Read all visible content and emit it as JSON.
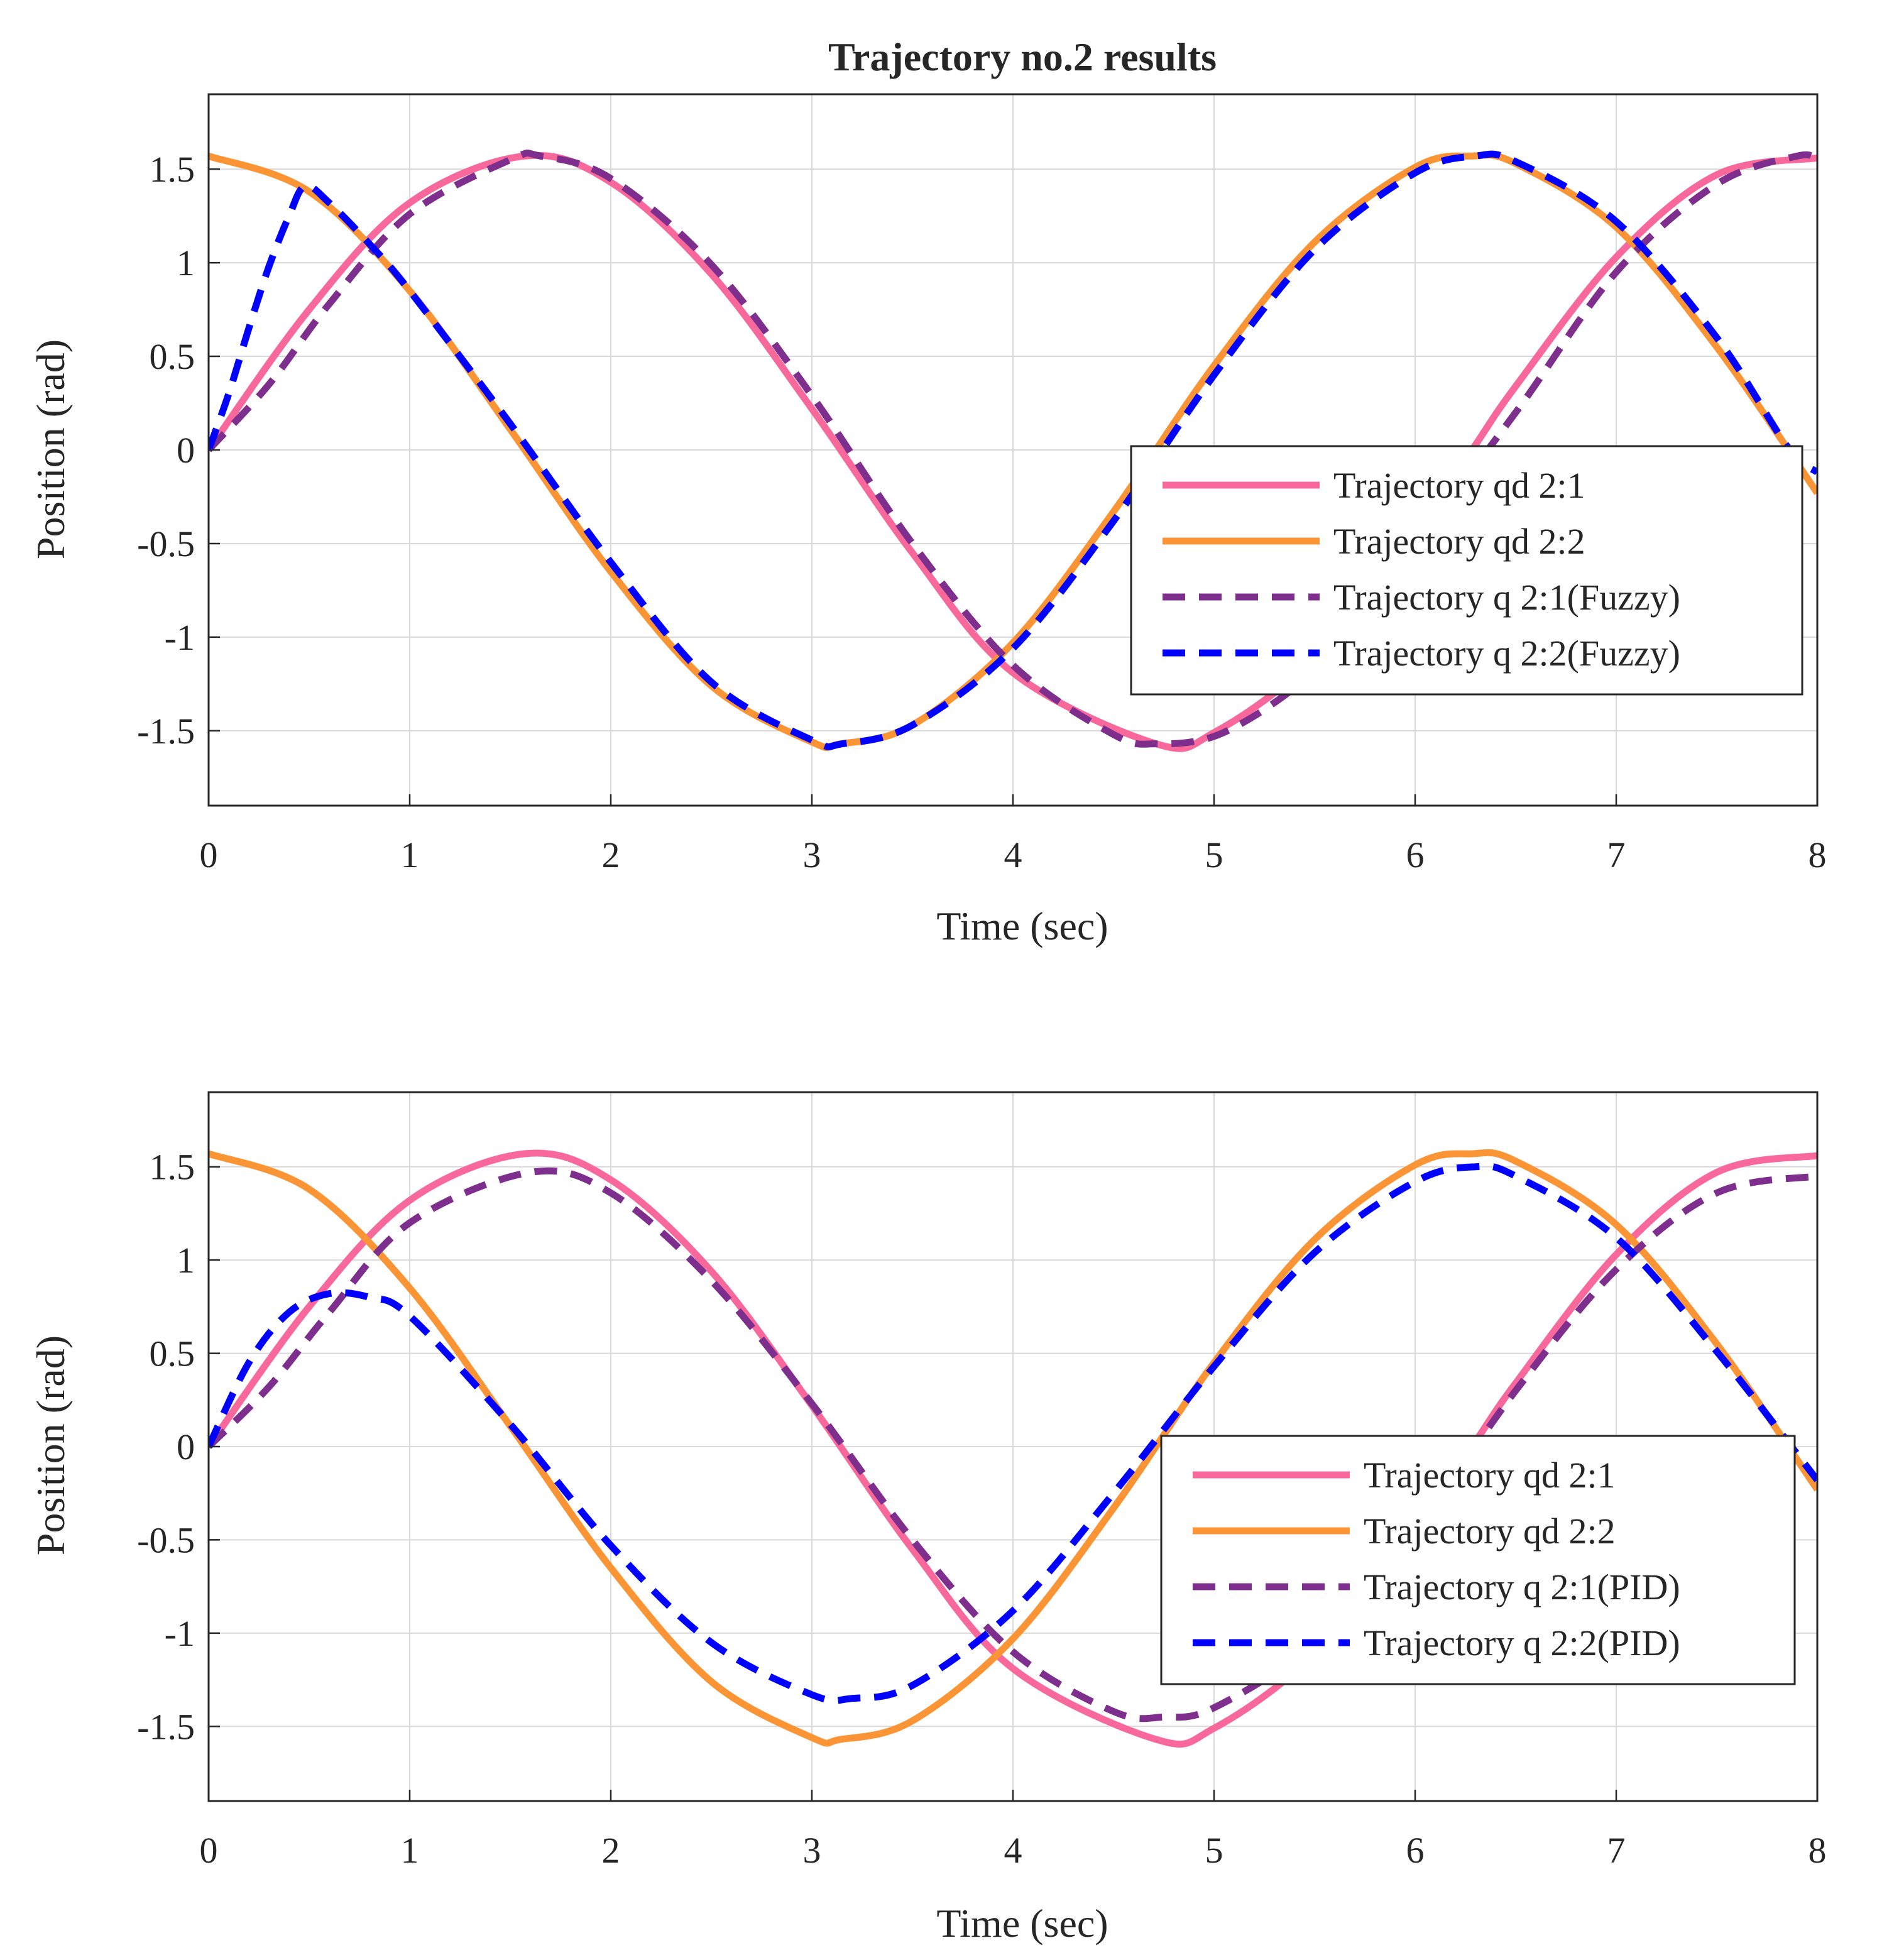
{
  "colors": {
    "qd1": "#f8689a",
    "qd2": "#fb9435",
    "q1": "#7e2f8e",
    "q2": "#0000ff",
    "grid": "#d9d9d9",
    "axis": "#262626"
  },
  "chart_data": [
    {
      "type": "line",
      "title": "Trajectory no.2 results",
      "xlabel": "Time (sec)",
      "ylabel": "Position (rad)",
      "xlim": [
        0,
        8
      ],
      "ylim": [
        -1.9,
        1.9
      ],
      "xticks": [
        "0",
        "1",
        "2",
        "3",
        "4",
        "5",
        "6",
        "7",
        "8"
      ],
      "yticks": [
        "1.5",
        "1",
        "0.5",
        "0",
        "-0.5",
        "-1",
        "-1.5"
      ],
      "grid": true,
      "legend_position": "right",
      "series": [
        {
          "name": "Trajectory qd 2:1",
          "style": "solid",
          "color_key": "qd1",
          "x": [
            0,
            0.5,
            1,
            1.5708,
            2,
            2.5,
            3,
            3.5,
            4,
            4.7124,
            5,
            5.5,
            6,
            6.2832,
            6.5,
            7,
            7.5,
            8
          ],
          "y": [
            0,
            0.75,
            1.32,
            1.57,
            1.43,
            0.94,
            0.22,
            -0.55,
            -1.19,
            -1.57,
            -1.51,
            -1.11,
            -0.44,
            0,
            0.34,
            1.03,
            1.47,
            1.56
          ]
        },
        {
          "name": "Trajectory qd 2:2",
          "style": "solid",
          "color_key": "qd2",
          "x": [
            0,
            0.5,
            1,
            1.5,
            2,
            2.5,
            3,
            3.1416,
            3.5,
            4,
            4.5,
            5,
            5.5,
            6,
            6.2832,
            6.5,
            7,
            7.5,
            8
          ],
          "y": [
            1.57,
            1.38,
            0.85,
            0.11,
            -0.65,
            -1.26,
            -1.56,
            -1.57,
            -1.47,
            -1.03,
            -0.33,
            0.45,
            1.11,
            1.51,
            1.57,
            1.53,
            1.19,
            0.55,
            -0.23
          ]
        },
        {
          "name": "Trajectory q 2:1(Fuzzy)",
          "style": "dashed",
          "color_key": "q1",
          "x": [
            0,
            0.3,
            0.6,
            1,
            1.5,
            1.65,
            2,
            2.5,
            3,
            3.5,
            4,
            4.5,
            4.72,
            5,
            5.3,
            5.5,
            6,
            6.5,
            7,
            7.5,
            7.9,
            8
          ],
          "y": [
            0,
            0.35,
            0.78,
            1.26,
            1.55,
            1.57,
            1.45,
            0.99,
            0.29,
            -0.5,
            -1.15,
            -1.52,
            -1.57,
            -1.53,
            -1.35,
            -1.15,
            -0.5,
            0.2,
            0.95,
            1.42,
            1.57,
            1.55
          ]
        },
        {
          "name": "Trajectory q 2:2(Fuzzy)",
          "style": "dashed",
          "color_key": "q2",
          "x": [
            0,
            0.1,
            0.2,
            0.3,
            0.4,
            0.48,
            0.6,
            0.8,
            1,
            1.5,
            2,
            2.5,
            3,
            3.15,
            3.5,
            4,
            4.5,
            5,
            5.5,
            6,
            6.3,
            6.5,
            7,
            7.5,
            7.85,
            8
          ],
          "y": [
            0,
            0.3,
            0.65,
            0.98,
            1.25,
            1.41,
            1.32,
            1.1,
            0.85,
            0.14,
            -0.6,
            -1.24,
            -1.55,
            -1.57,
            -1.47,
            -1.06,
            -0.38,
            0.4,
            1.07,
            1.48,
            1.57,
            1.54,
            1.22,
            0.6,
            0.02,
            -0.12
          ]
        }
      ],
      "legend": [
        "Trajectory qd 2:1",
        "Trajectory qd 2:2",
        "Trajectory q 2:1(Fuzzy)",
        "Trajectory q 2:2(Fuzzy)"
      ]
    },
    {
      "type": "line",
      "title": "",
      "xlabel": "Time (sec)",
      "ylabel": "Position (rad)",
      "xlim": [
        0,
        8
      ],
      "ylim": [
        -1.9,
        1.9
      ],
      "xticks": [
        "0",
        "1",
        "2",
        "3",
        "4",
        "5",
        "6",
        "7",
        "8"
      ],
      "yticks": [
        "1.5",
        "1",
        "0.5",
        "0",
        "-0.5",
        "-1",
        "-1.5"
      ],
      "grid": true,
      "legend_position": "right",
      "series": [
        {
          "name": "Trajectory qd 2:1",
          "style": "solid",
          "color_key": "qd1",
          "x": [
            0,
            0.5,
            1,
            1.5708,
            2,
            2.5,
            3,
            3.5,
            4,
            4.7124,
            5,
            5.5,
            6,
            6.2832,
            6.5,
            7,
            7.5,
            8
          ],
          "y": [
            0,
            0.75,
            1.32,
            1.57,
            1.43,
            0.94,
            0.22,
            -0.55,
            -1.19,
            -1.57,
            -1.51,
            -1.11,
            -0.44,
            0,
            0.34,
            1.03,
            1.47,
            1.56
          ]
        },
        {
          "name": "Trajectory qd 2:2",
          "style": "solid",
          "color_key": "qd2",
          "x": [
            0,
            0.5,
            1,
            1.5,
            2,
            2.5,
            3,
            3.1416,
            3.5,
            4,
            4.5,
            5,
            5.5,
            6,
            6.2832,
            6.5,
            7,
            7.5,
            8
          ],
          "y": [
            1.57,
            1.38,
            0.85,
            0.11,
            -0.65,
            -1.26,
            -1.56,
            -1.57,
            -1.47,
            -1.03,
            -0.33,
            0.45,
            1.11,
            1.51,
            1.57,
            1.53,
            1.19,
            0.55,
            -0.23
          ]
        },
        {
          "name": "Trajectory q 2:1(PID)",
          "style": "dashed",
          "color_key": "q1",
          "x": [
            0,
            0.3,
            0.6,
            1,
            1.6,
            2,
            2.5,
            3,
            3.5,
            4,
            4.5,
            4.75,
            5,
            5.5,
            6,
            6.5,
            7,
            7.5,
            8
          ],
          "y": [
            0,
            0.32,
            0.72,
            1.2,
            1.47,
            1.36,
            0.89,
            0.23,
            -0.5,
            -1.1,
            -1.42,
            -1.45,
            -1.4,
            -1.05,
            -0.45,
            0.3,
            0.95,
            1.36,
            1.45
          ]
        },
        {
          "name": "Trajectory q 2:2(PID)",
          "style": "dashed",
          "color_key": "q2",
          "x": [
            0,
            0.2,
            0.4,
            0.6,
            0.8,
            1,
            1.5,
            2,
            2.5,
            3,
            3.2,
            3.5,
            4,
            4.5,
            5,
            5.5,
            6,
            6.3,
            6.5,
            7,
            7.5,
            8
          ],
          "y": [
            0,
            0.45,
            0.72,
            0.82,
            0.8,
            0.7,
            0.12,
            -0.53,
            -1.05,
            -1.33,
            -1.35,
            -1.28,
            -0.88,
            -0.25,
            0.43,
            1.04,
            1.42,
            1.5,
            1.45,
            1.12,
            0.51,
            -0.18
          ]
        }
      ],
      "legend": [
        "Trajectory qd 2:1",
        "Trajectory qd 2:2",
        "Trajectory q 2:1(PID)",
        "Trajectory q 2:2(PID)"
      ]
    }
  ]
}
